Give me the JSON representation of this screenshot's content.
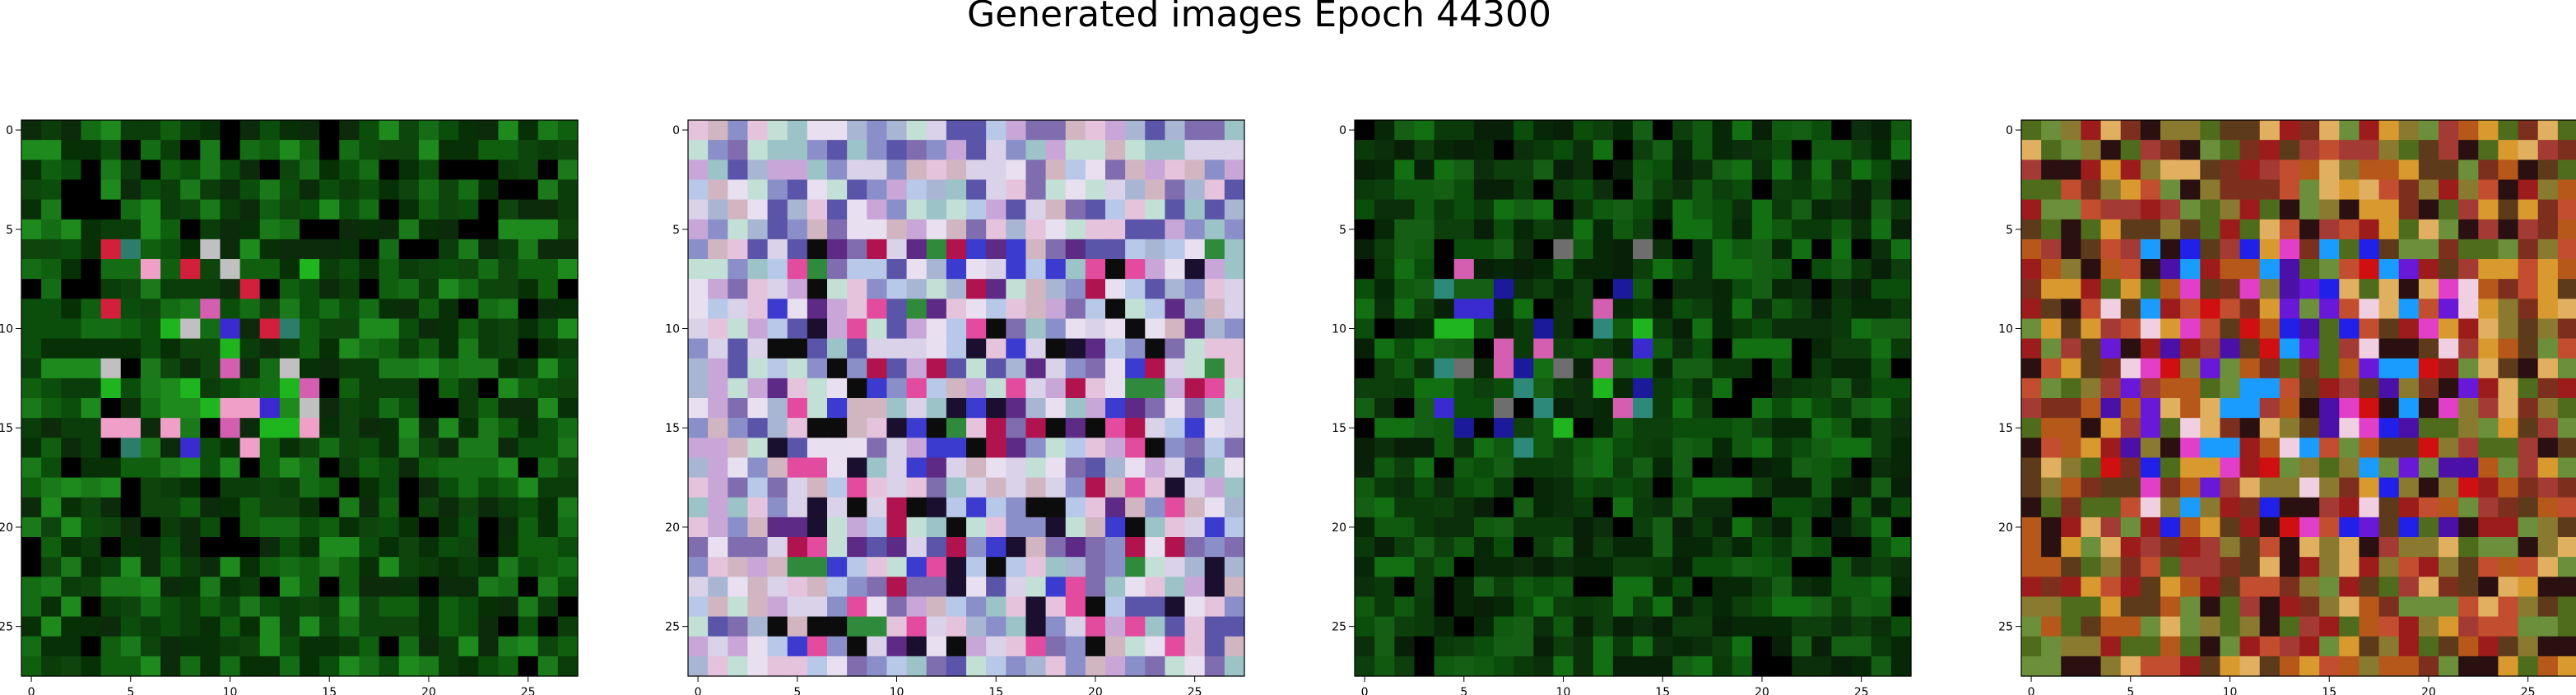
{
  "figure": {
    "title": "Generated images Epoch 44300"
  },
  "chart_data": {
    "type": "heatmap",
    "title": "Generated images Epoch 44300",
    "image_grid_size": [
      28,
      28
    ],
    "xlim": [
      -0.5,
      27.5
    ],
    "ylim": [
      27.5,
      -0.5
    ],
    "x_ticks": [
      0,
      5,
      10,
      15,
      20,
      25
    ],
    "y_ticks": [
      0,
      5,
      10,
      15,
      20,
      25
    ],
    "x_tick_labels": [
      "0",
      "5",
      "10",
      "15",
      "20",
      "25"
    ],
    "y_tick_labels": [
      "0",
      "5",
      "10",
      "15",
      "20",
      "25"
    ],
    "grid": false,
    "panels": [
      {
        "name": "generated-image-1",
        "palette": [
          "#0b4d0b",
          "#0f5f0f",
          "#0a3d0a",
          "#146d14",
          "#073007",
          "#1a7a1a",
          "#000000",
          "#0b2b0b",
          "#1e8a1e",
          "#0d450d"
        ],
        "accent_palette": [
          "#d21f3c",
          "#d45fb0",
          "#3a2bd0",
          "#1fb51f",
          "#2d7d6b",
          "#c0c0c0",
          "#f0a0c8"
        ],
        "accent_region": [
          6,
          16,
          4,
          14
        ]
      },
      {
        "name": "generated-image-2",
        "palette": [
          "#b7c8e8",
          "#c9a6d8",
          "#9cc3c7",
          "#d9d2e9",
          "#8b8fc9",
          "#c2e0d6",
          "#e6c3dc",
          "#7f6db0",
          "#a9b6d3",
          "#d1b6c2",
          "#5a55a8",
          "#e8e0f0"
        ],
        "accent_palette": [
          "#1a0f2e",
          "#b0134e",
          "#2f8a3c",
          "#5d2b86",
          "#0c0c0c",
          "#e34b9e",
          "#3b3bd0"
        ],
        "accent_region": [
          6,
          26,
          4,
          26
        ]
      },
      {
        "name": "generated-image-3",
        "palette": [
          "#0b4d0b",
          "#0a3a0a",
          "#0f5a0f",
          "#062806",
          "#000000",
          "#0d3f0d",
          "#127012",
          "#081f08",
          "#0b2e0b",
          "#155f15"
        ],
        "accent_palette": [
          "#2d8a7a",
          "#1a1a9a",
          "#d45fb0",
          "#3a2bd0",
          "#1fb51f",
          "#6e6e6e"
        ],
        "accent_region": [
          6,
          16,
          4,
          14
        ]
      },
      {
        "name": "generated-image-4",
        "palette": [
          "#7d2f1e",
          "#b5581a",
          "#d89a2f",
          "#4f6b1c",
          "#a33a33",
          "#2a1010",
          "#8a7a2f",
          "#c24d2f",
          "#5d3a1a",
          "#e0b060",
          "#9c1c1c",
          "#6b8f3a"
        ],
        "accent_palette": [
          "#2020e8",
          "#6a18d8",
          "#e23fc8",
          "#1a9cff",
          "#d01010",
          "#f0d0e0",
          "#4a10a8"
        ],
        "accent_region": [
          6,
          20,
          4,
          22
        ]
      }
    ]
  }
}
